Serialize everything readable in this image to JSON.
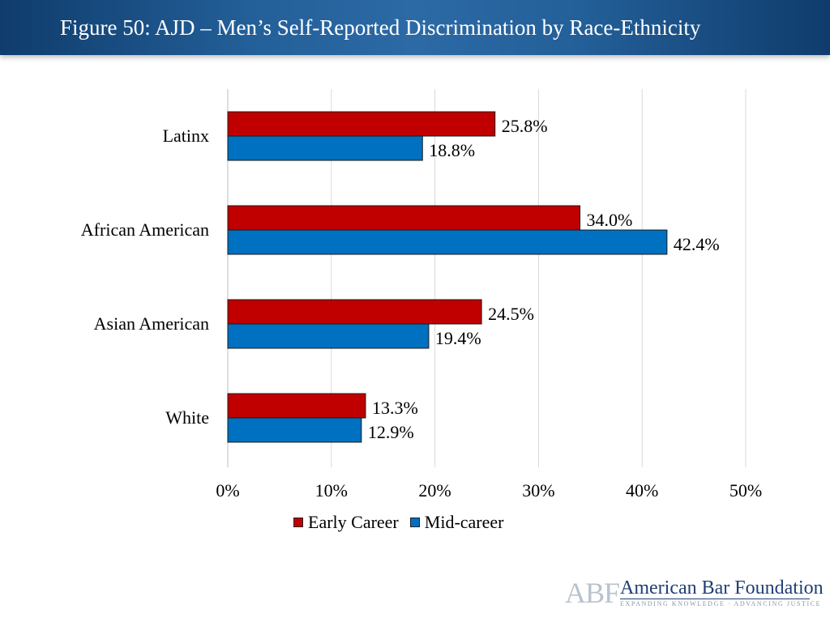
{
  "header": {
    "title": "Figure 50: AJD – Men’s Self-Reported Discrimination by Race-Ethnicity"
  },
  "chart_data": {
    "type": "bar",
    "orientation": "horizontal",
    "title": "Figure 50: AJD – Men’s Self-Reported Discrimination by Race-Ethnicity",
    "categories": [
      "Latinx",
      "African American",
      "Asian American",
      "White"
    ],
    "series": [
      {
        "name": "Early Career",
        "color": "#c00000",
        "values": [
          25.8,
          34.0,
          24.5,
          13.3
        ],
        "labels": [
          "25.8%",
          "34.0%",
          "24.5%",
          "13.3%"
        ]
      },
      {
        "name": "Mid-career",
        "color": "#0070c0",
        "values": [
          18.8,
          42.4,
          19.4,
          12.9
        ],
        "labels": [
          "18.8%",
          "42.4%",
          "19.4%",
          "12.9%"
        ]
      }
    ],
    "xlim": [
      0,
      50
    ],
    "ticks": [
      0,
      10,
      20,
      30,
      40,
      50
    ],
    "tick_labels": [
      "0%",
      "10%",
      "20%",
      "30%",
      "40%",
      "50%"
    ],
    "grid": "vertical",
    "legend": "bottom",
    "xlabel": "",
    "ylabel": ""
  },
  "legend": {
    "early_label": "Early Career",
    "mid_label": "Mid-career"
  },
  "logo": {
    "abbr": "ABF",
    "name": "American Bar Foundation",
    "tagline": "EXPANDING KNOWLEDGE · ADVANCING JUSTICE"
  }
}
